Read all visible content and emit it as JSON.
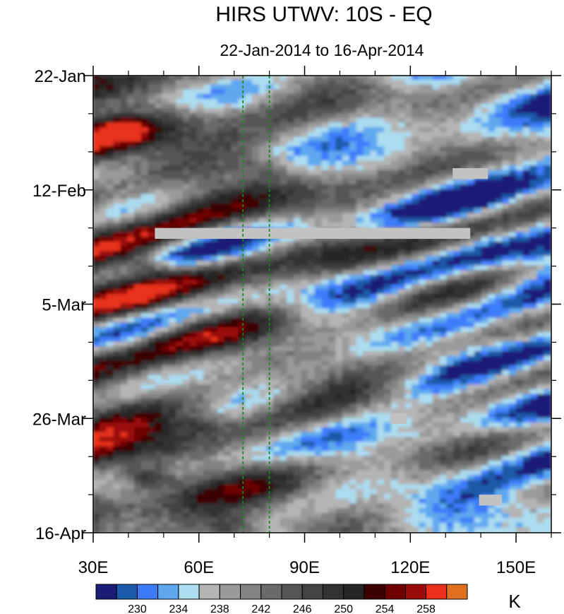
{
  "chart_data": {
    "type": "heatmap",
    "title": "HIRS UTWV: 10S - EQ",
    "subtitle": "22-Jan-2014 to 16-Apr-2014",
    "x_axis": {
      "range": [
        30,
        160
      ],
      "ticks": [
        30,
        60,
        90,
        120,
        150
      ],
      "tick_labels": [
        "30E",
        "60E",
        "90E",
        "120E",
        "150E"
      ],
      "minor_step": 10
    },
    "y_axis": {
      "range": [
        "2014-01-22",
        "2014-04-16"
      ],
      "ticks": [
        "2014-01-22",
        "2014-02-12",
        "2014-03-05",
        "2014-03-26",
        "2014-04-16"
      ],
      "tick_labels": [
        "22-Jan",
        "12-Feb",
        "5-Mar",
        "26-Mar",
        "16-Apr"
      ],
      "minor_step_days": 7,
      "direction": "downward"
    },
    "reference_lines": [
      {
        "lon": 72.5,
        "color": "#1a8a1a",
        "style": "dashed"
      },
      {
        "lon": 80,
        "color": "#1a8a1a",
        "style": "dashed"
      }
    ],
    "missing_patches": [
      {
        "lon": [
          47.5,
          137
        ],
        "date": [
          "2014-02-19",
          "2014-02-21"
        ]
      },
      {
        "lon": [
          132,
          142
        ],
        "date": [
          "2014-02-08",
          "2014-02-10"
        ]
      },
      {
        "lon": [
          114.5,
          119
        ],
        "date": [
          "2014-03-25",
          "2014-03-27"
        ]
      },
      {
        "lon": [
          139.5,
          146
        ],
        "date": [
          "2014-04-09",
          "2014-04-11"
        ]
      }
    ],
    "colorbar": {
      "units": "K",
      "levels": [
        228,
        230,
        232,
        234,
        236,
        238,
        240,
        242,
        244,
        246,
        248,
        250,
        252,
        254,
        256,
        258
      ],
      "labels": [
        "230",
        "234",
        "238",
        "242",
        "246",
        "250",
        "254",
        "258"
      ],
      "colors": [
        "#1b1b78",
        "#1a5aa8",
        "#3d7bfa",
        "#5fa8f0",
        "#acdcf0",
        "#b4b4b4",
        "#9a9a9a",
        "#828282",
        "#6a6a6a",
        "#555555",
        "#434343",
        "#323232",
        "#262626",
        "#3c0000",
        "#6e0000",
        "#9a0c0c",
        "#e8301a",
        "#e0701e"
      ]
    }
  }
}
